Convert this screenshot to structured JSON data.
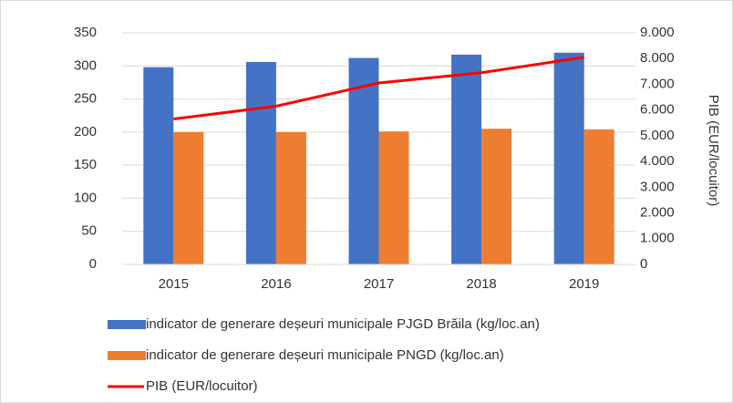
{
  "chart_data": {
    "type": "bar",
    "y2label": "PIB (EUR/locuitor)",
    "categories": [
      "2015",
      "2016",
      "2017",
      "2018",
      "2019"
    ],
    "series": [
      {
        "name": "indicator de generare deșeuri municipale PJGD Brăila (kg/loc.an)",
        "color": "#4472c4",
        "values": [
          298,
          306,
          312,
          317,
          320
        ]
      },
      {
        "name": "indicator de generare deșeuri municipale PNGD (kg/loc.an)",
        "color": "#ed7d31",
        "values": [
          200,
          200,
          201,
          205,
          204
        ]
      },
      {
        "name": "PIB (EUR/locuitor)",
        "color": "#ff0000",
        "type": "line",
        "axis": "y2",
        "values": [
          5650,
          6150,
          7050,
          7450,
          8050
        ]
      }
    ],
    "ylim": [
      0,
      350
    ],
    "yticks": [
      0,
      50,
      100,
      150,
      200,
      250,
      300,
      350
    ],
    "y2lim": [
      0,
      9000
    ],
    "y2ticks": [
      0,
      {
        "value": 1000,
        "label": "1.000"
      },
      {
        "value": 2000,
        "label": "2.000"
      },
      {
        "value": 3000,
        "label": "3.000"
      },
      {
        "value": 4000,
        "label": "4.000"
      },
      {
        "value": 5000,
        "label": "5.000"
      },
      {
        "value": 6000,
        "label": "6.000"
      },
      {
        "value": 7000,
        "label": "7.000"
      },
      {
        "value": 8000,
        "label": "8.000"
      },
      {
        "value": 9000,
        "label": "9.000"
      }
    ],
    "grid": true,
    "legend": "bottom"
  }
}
